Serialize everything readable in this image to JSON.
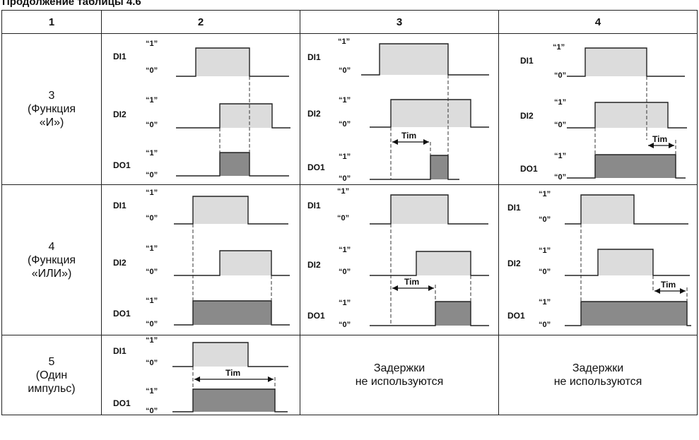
{
  "caption": "Продолжение таблицы 4.6",
  "headers": [
    "1",
    "2",
    "3",
    "4"
  ],
  "rows": [
    {
      "mode_number": "3",
      "mode_lines": [
        "(Функция",
        "«И»)"
      ]
    },
    {
      "mode_number": "4",
      "mode_lines": [
        "(Функция",
        "«ИЛИ»)"
      ]
    },
    {
      "mode_number": "5",
      "mode_lines": [
        "(Один",
        "импульс)"
      ]
    }
  ],
  "signals": {
    "di1": "DI1",
    "di2": "DI2",
    "do1": "DO1"
  },
  "levels": {
    "high": "“1”",
    "low": "“0”"
  },
  "delay_label": "Tim",
  "no_delay_text": [
    "Задержки",
    "не используются"
  ]
}
